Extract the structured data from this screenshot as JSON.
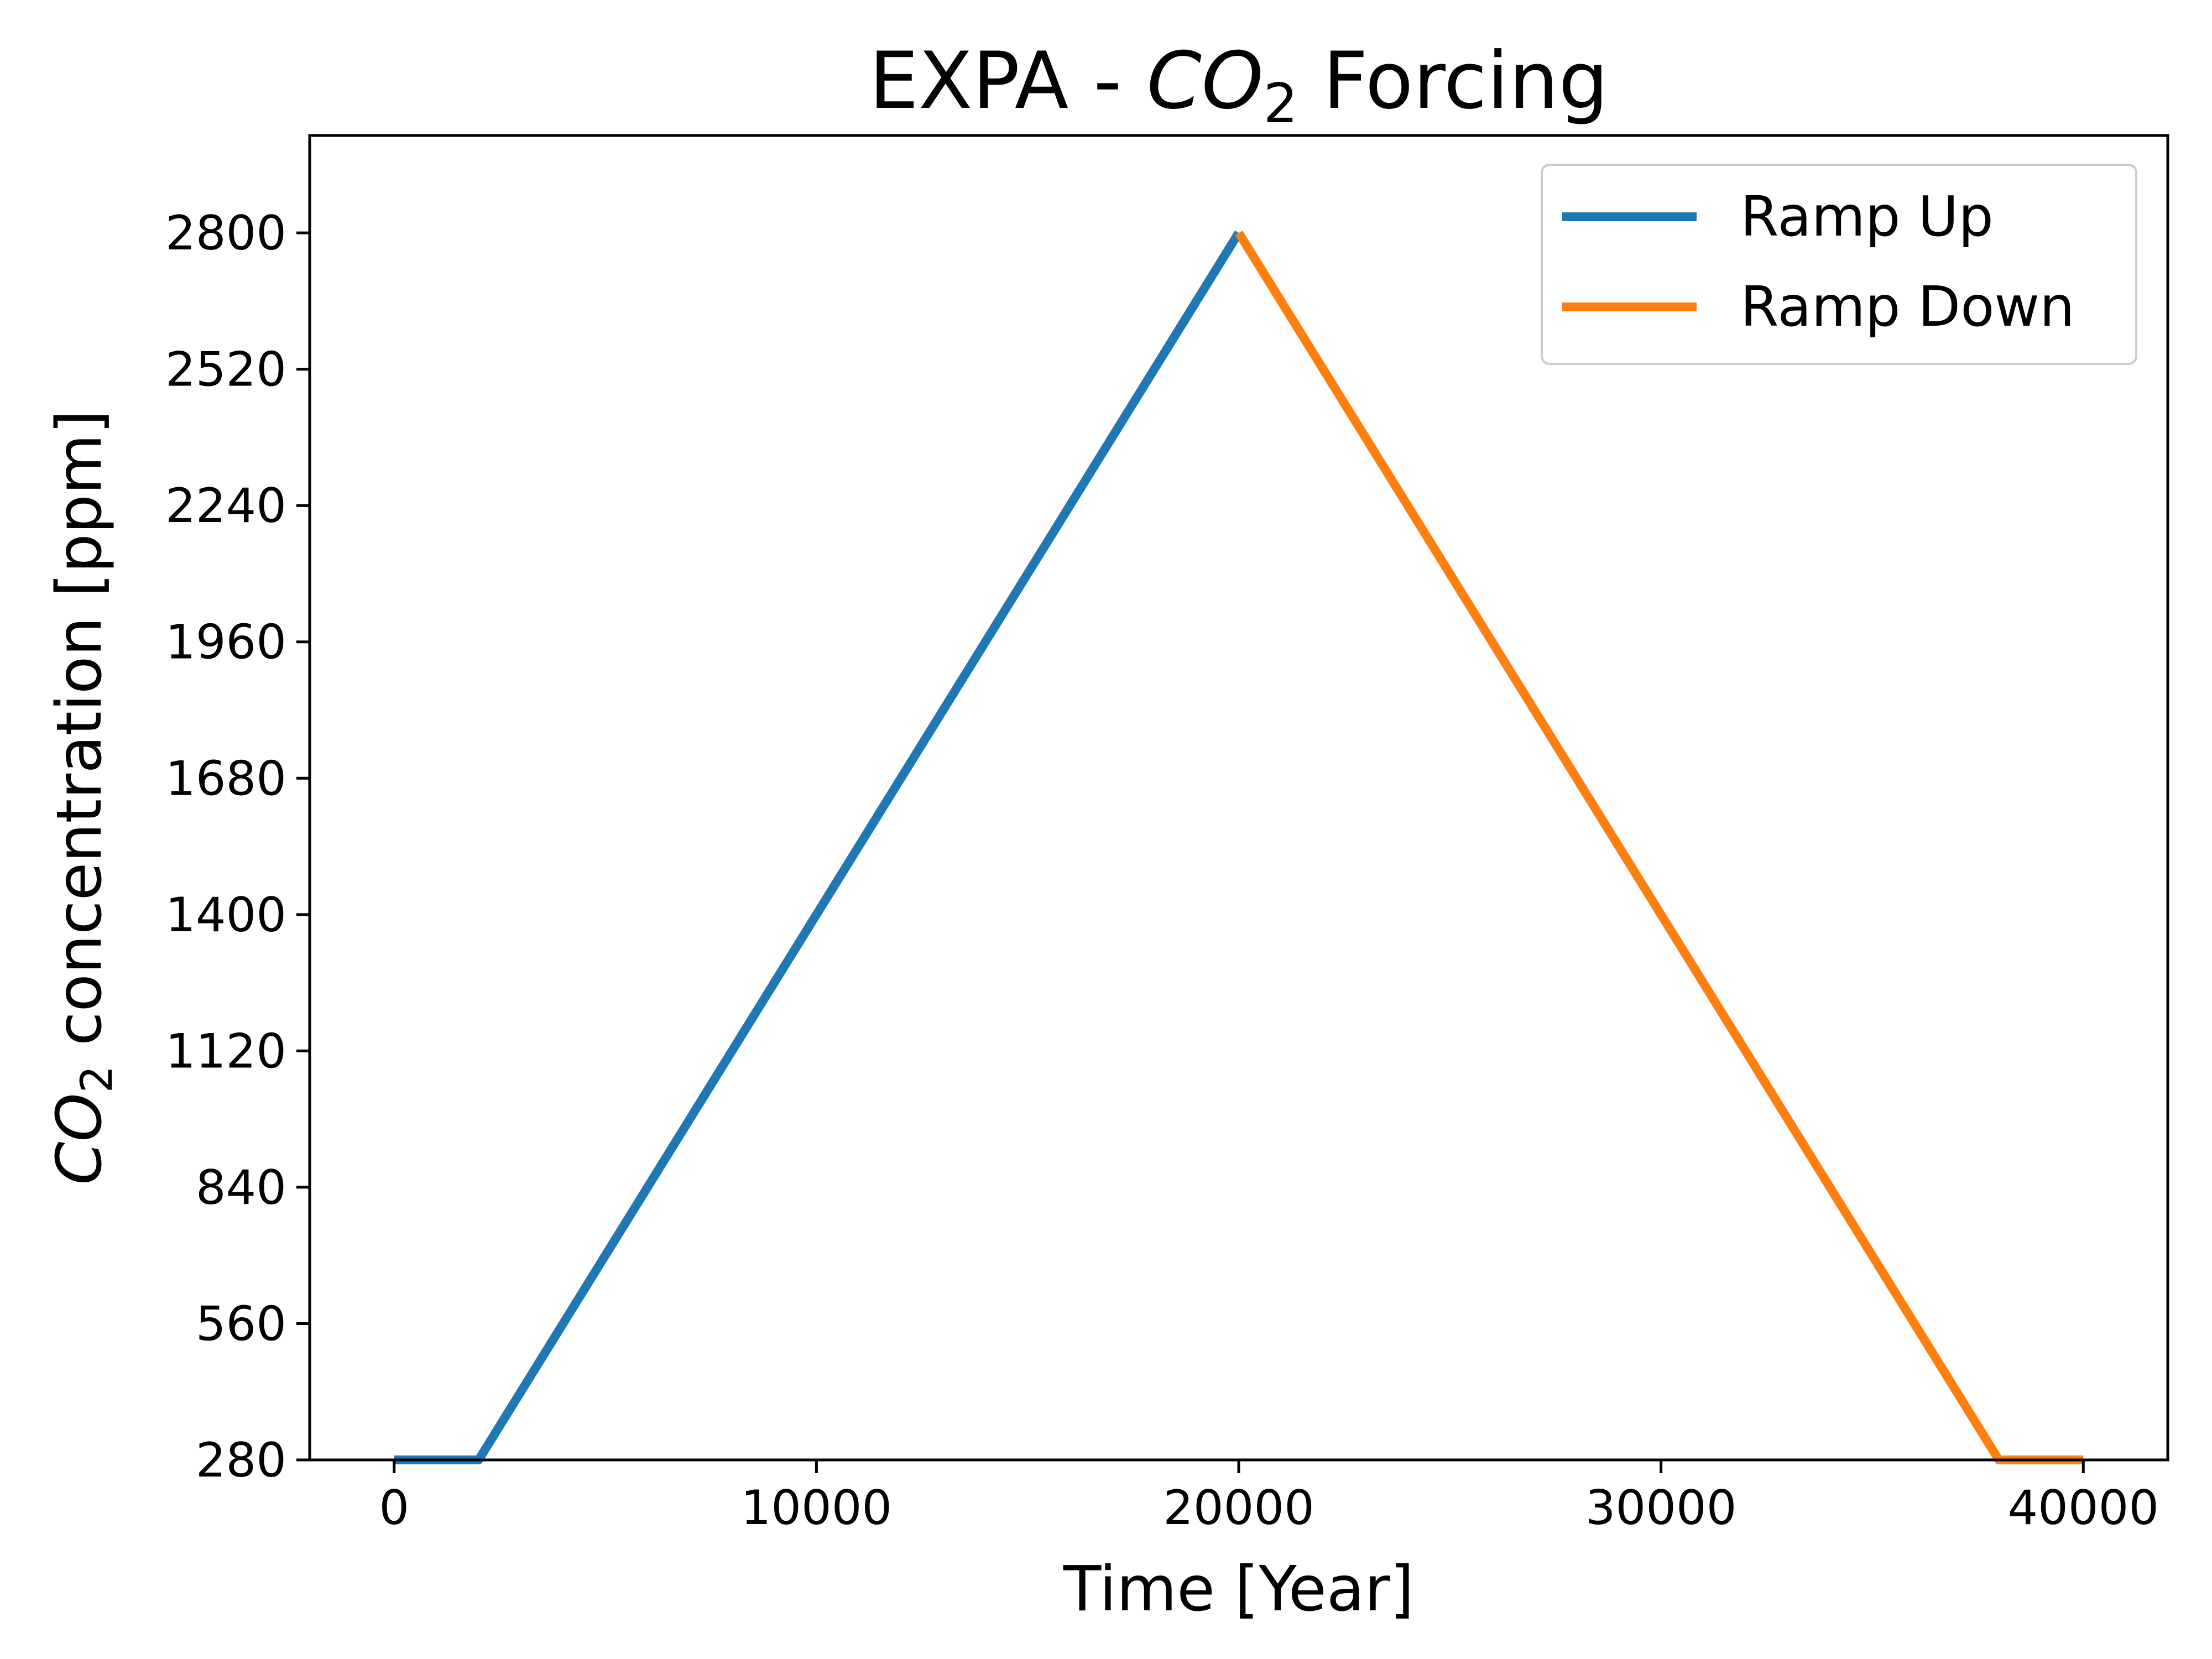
{
  "chart_data": {
    "type": "line",
    "title": {
      "pre": "EXPA - ",
      "italic": "CO",
      "sub": "2",
      "post": " Forcing"
    },
    "xlabel": "Time [Year]",
    "ylabel": {
      "italic": "CO",
      "sub": "2",
      "post": "  concentration [ppm]"
    },
    "xlim": [
      -2000,
      42000
    ],
    "ylim": [
      280,
      3000
    ],
    "xticks": [
      0,
      10000,
      20000,
      30000,
      40000
    ],
    "yticks": [
      280,
      560,
      840,
      1120,
      1400,
      1680,
      1960,
      2240,
      2520,
      2800
    ],
    "grid": false,
    "legend_position": "upper right",
    "series": [
      {
        "name": "Ramp Up",
        "color": "#1f77b4",
        "x": [
          0,
          2000,
          20000
        ],
        "y": [
          280,
          280,
          2800
        ]
      },
      {
        "name": "Ramp Down",
        "color": "#ff7f0e",
        "x": [
          20000,
          38000,
          40000
        ],
        "y": [
          2800,
          280,
          280
        ]
      }
    ]
  }
}
